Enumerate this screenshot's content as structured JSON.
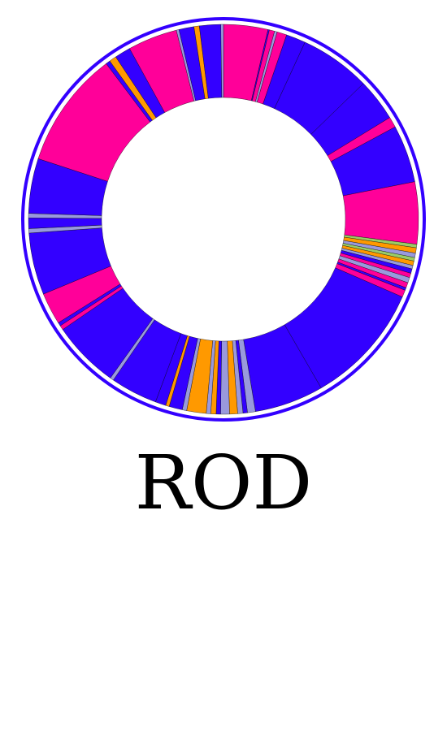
{
  "chart_data": {
    "type": "pie",
    "variant": "donut",
    "title": "ROD",
    "colors": {
      "blue": "#3300ff",
      "pink": "#ff0099",
      "orange": "#ff9900",
      "lavender": "#9999dd",
      "green": "#99cc66",
      "black": "#000000",
      "ring": "#3300ff"
    },
    "slices": [
      {
        "color": "pink",
        "value": 5.0
      },
      {
        "color": "blue",
        "value": 0.15
      },
      {
        "color": "pink",
        "value": 0.6
      },
      {
        "color": "lavender",
        "value": 0.3
      },
      {
        "color": "pink",
        "value": 1.1
      },
      {
        "color": "blue",
        "value": 2.2
      },
      {
        "color": "blue",
        "value": 8.0
      },
      {
        "color": "blue",
        "value": 4.8
      },
      {
        "color": "pink",
        "value": 1.2
      },
      {
        "color": "blue",
        "value": 6.5
      },
      {
        "color": "pink",
        "value": 7.0
      },
      {
        "color": "green",
        "value": 0.4
      },
      {
        "color": "orange",
        "value": 0.6
      },
      {
        "color": "lavender",
        "value": 0.5
      },
      {
        "color": "green",
        "value": 0.4
      },
      {
        "color": "orange",
        "value": 0.5
      },
      {
        "color": "lavender",
        "value": 0.4
      },
      {
        "color": "blue",
        "value": 0.5
      },
      {
        "color": "pink",
        "value": 0.5
      },
      {
        "color": "lavender",
        "value": 0.6
      },
      {
        "color": "pink",
        "value": 0.6
      },
      {
        "color": "blue",
        "value": 0.3
      },
      {
        "color": "pink",
        "value": 0.8
      },
      {
        "color": "blue",
        "value": 13.8
      },
      {
        "color": "blue",
        "value": 7.8
      },
      {
        "color": "lavender",
        "value": 0.9
      },
      {
        "color": "blue",
        "value": 0.5
      },
      {
        "color": "lavender",
        "value": 0.6
      },
      {
        "color": "orange",
        "value": 0.9
      },
      {
        "color": "lavender",
        "value": 1.0
      },
      {
        "color": "blue",
        "value": 0.5
      },
      {
        "color": "orange",
        "value": 0.6
      },
      {
        "color": "lavender",
        "value": 0.5
      },
      {
        "color": "orange",
        "value": 2.2
      },
      {
        "color": "lavender",
        "value": 0.5
      },
      {
        "color": "blue",
        "value": 1.5
      },
      {
        "color": "orange",
        "value": 0.4
      },
      {
        "color": "blue",
        "value": 1.2
      },
      {
        "color": "blue",
        "value": 5.3
      },
      {
        "color": "lavender",
        "value": 0.4
      },
      {
        "color": "blue",
        "value": 7.6
      },
      {
        "color": "pink",
        "value": 0.5
      },
      {
        "color": "blue",
        "value": 0.4
      },
      {
        "color": "pink",
        "value": 3.6
      },
      {
        "color": "blue",
        "value": 7.0
      },
      {
        "color": "lavender",
        "value": 0.5
      },
      {
        "color": "blue",
        "value": 1.2
      },
      {
        "color": "lavender",
        "value": 0.5
      },
      {
        "color": "blue",
        "value": 6.2
      },
      {
        "color": "pink",
        "value": 13.2
      },
      {
        "color": "blue",
        "value": 0.5
      },
      {
        "color": "orange",
        "value": 0.8
      },
      {
        "color": "blue",
        "value": 1.8
      },
      {
        "color": "pink",
        "value": 5.6
      },
      {
        "color": "lavender",
        "value": 0.3
      },
      {
        "color": "blue",
        "value": 1.7
      },
      {
        "color": "orange",
        "value": 0.6
      },
      {
        "color": "blue",
        "value": 2.4
      },
      {
        "color": "lavender",
        "value": 0.3
      }
    ]
  }
}
